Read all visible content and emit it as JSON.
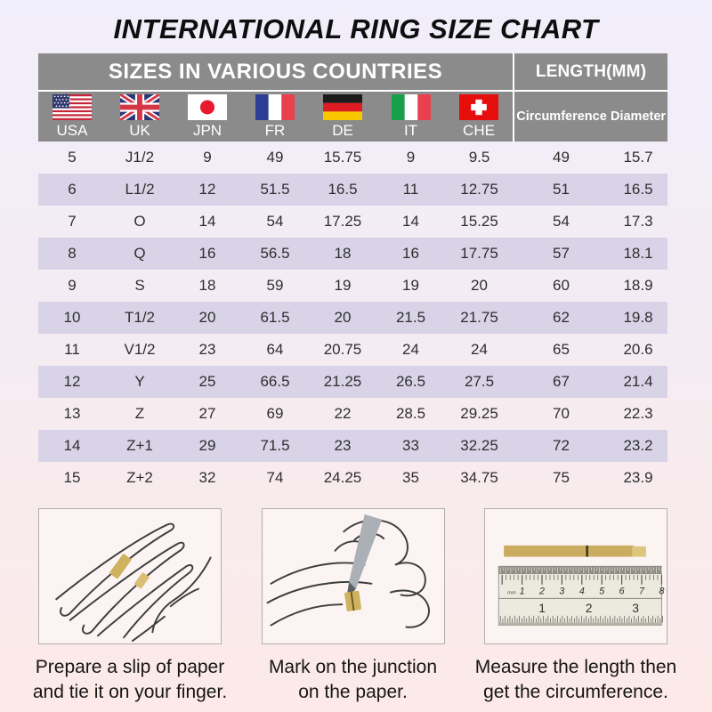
{
  "title": "INTERNATIONAL RING SIZE CHART",
  "table": {
    "header_left": "SIZES IN VARIOUS COUNTRIES",
    "header_right": "LENGTH(MM)",
    "countries": [
      {
        "label": "USA",
        "flag": "us"
      },
      {
        "label": "UK",
        "flag": "uk"
      },
      {
        "label": "JPN",
        "flag": "jp"
      },
      {
        "label": "FR",
        "flag": "fr"
      },
      {
        "label": "DE",
        "flag": "de"
      },
      {
        "label": "IT",
        "flag": "it"
      },
      {
        "label": "CHE",
        "flag": "ch"
      }
    ],
    "length_headers": [
      "Circumference",
      "Diameter"
    ],
    "column_keys": [
      "usa",
      "uk",
      "jpn",
      "fr",
      "de",
      "it",
      "che",
      "circumference",
      "diameter"
    ],
    "rows": [
      [
        "5",
        "J1/2",
        "9",
        "49",
        "15.75",
        "9",
        "9.5",
        "49",
        "15.7"
      ],
      [
        "6",
        "L1/2",
        "12",
        "51.5",
        "16.5",
        "11",
        "12.75",
        "51",
        "16.5"
      ],
      [
        "7",
        "O",
        "14",
        "54",
        "17.25",
        "14",
        "15.25",
        "54",
        "17.3"
      ],
      [
        "8",
        "Q",
        "16",
        "56.5",
        "18",
        "16",
        "17.75",
        "57",
        "18.1"
      ],
      [
        "9",
        "S",
        "18",
        "59",
        "19",
        "19",
        "20",
        "60",
        "18.9"
      ],
      [
        "10",
        "T1/2",
        "20",
        "61.5",
        "20",
        "21.5",
        "21.75",
        "62",
        "19.8"
      ],
      [
        "11",
        "V1/2",
        "23",
        "64",
        "20.75",
        "24",
        "24",
        "65",
        "20.6"
      ],
      [
        "12",
        "Y",
        "25",
        "66.5",
        "21.25",
        "26.5",
        "27.5",
        "67",
        "21.4"
      ],
      [
        "13",
        "Z",
        "27",
        "69",
        "22",
        "28.5",
        "29.25",
        "70",
        "22.3"
      ],
      [
        "14",
        "Z+1",
        "29",
        "71.5",
        "23",
        "33",
        "32.25",
        "72",
        "23.2"
      ],
      [
        "15",
        "Z+2",
        "32",
        "74",
        "24.25",
        "35",
        "34.75",
        "75",
        "23.9"
      ]
    ]
  },
  "instructions": [
    {
      "caption": "Prepare a slip of paper\nand tie it on your finger.",
      "illustration": "hand-with-paper-strip"
    },
    {
      "caption": "Mark on the junction\non the paper.",
      "illustration": "marking-pen-on-finger"
    },
    {
      "caption": "Measure the length then\nget the circumference.",
      "illustration": "ruler-measuring-strip",
      "ruler": {
        "top_scale": [
          "1",
          "2",
          "3",
          "4",
          "5",
          "6",
          "7",
          "8"
        ],
        "top_unit": "mm",
        "bottom_scale": [
          "1",
          "2",
          "3"
        ]
      }
    }
  ],
  "colors": {
    "background_top": "#f1eefb",
    "background_bottom": "#fdeae8",
    "header_bg": "#8b8b8b",
    "header_text": "#ffffff",
    "row_stripe": "#d9d3e8",
    "paper_strip_gold": "#cfb25f",
    "title_color": "#0e0e0e"
  }
}
